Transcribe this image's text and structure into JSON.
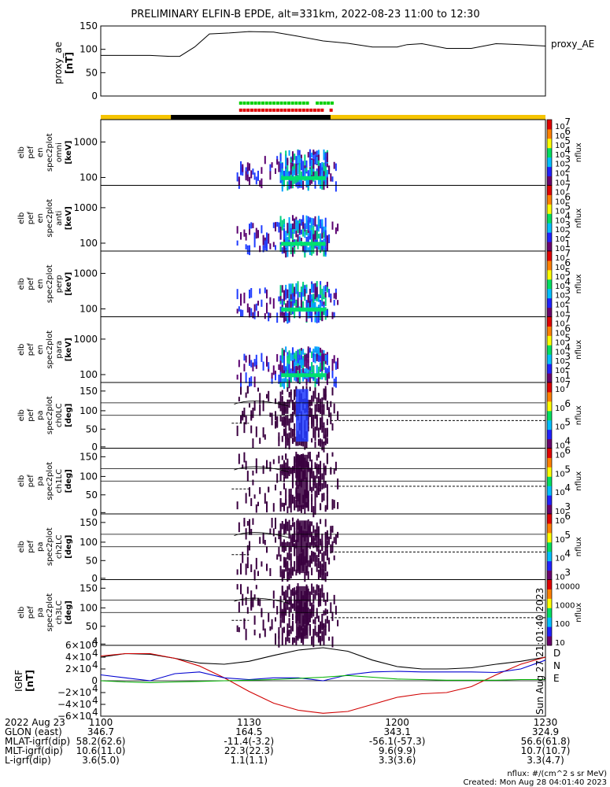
{
  "title": "PRELIMINARY ELFIN-B EPDE, alt=331km, 2022-08-23 11:00 to 12:30",
  "chart_data": [
    {
      "type": "line",
      "panel": "proxy_ae",
      "ylabel_lines": [
        "proxy_ae",
        "[nT]"
      ],
      "legend": "proxy_AE",
      "ylim": [
        0,
        150
      ],
      "yticks": [
        "150",
        "100",
        "50",
        "0"
      ],
      "x_minutes": [
        0,
        10,
        14,
        16,
        19,
        22,
        26,
        30,
        35,
        40,
        45,
        50,
        55,
        60,
        62,
        65,
        70,
        75,
        80,
        85,
        90
      ],
      "values": [
        87,
        87,
        85,
        85,
        105,
        133,
        135,
        138,
        137,
        128,
        118,
        113,
        105,
        105,
        110,
        112,
        102,
        102,
        112,
        110,
        107
      ]
    },
    {
      "type": "heatmap",
      "panels": [
        {
          "labels": [
            "elb",
            "pef",
            "en",
            "spec2plot",
            "omni",
            "[keV]"
          ],
          "yticks": [
            "1000",
            "100"
          ],
          "cbar": [
            "10",
            "10",
            "10",
            "10",
            "10",
            "10",
            "10"
          ],
          "cexp": [
            "7",
            "6",
            "5",
            "4",
            "3",
            "2",
            "1"
          ]
        },
        {
          "labels": [
            "elb",
            "pef",
            "en",
            "spec2plot",
            "anti",
            "[keV]"
          ],
          "yticks": [
            "1000",
            "100"
          ],
          "cbar": [
            "10",
            "10",
            "10",
            "10",
            "10",
            "10",
            "10"
          ],
          "cexp": [
            "7",
            "6",
            "5",
            "4",
            "3",
            "2",
            "1"
          ]
        },
        {
          "labels": [
            "elb",
            "pef",
            "en",
            "spec2plot",
            "perp",
            "[keV]"
          ],
          "yticks": [
            "1000",
            "100"
          ],
          "cbar": [
            "10",
            "10",
            "10",
            "10",
            "10",
            "10",
            "10"
          ],
          "cexp": [
            "7",
            "6",
            "5",
            "4",
            "3",
            "2",
            "1"
          ]
        },
        {
          "labels": [
            "elb",
            "pef",
            "en",
            "spec2plot",
            "para",
            "[keV]"
          ],
          "yticks": [
            "1000",
            "100"
          ],
          "cbar": [
            "10",
            "10",
            "10",
            "10",
            "10",
            "10",
            "10"
          ],
          "cexp": [
            "7",
            "6",
            "5",
            "4",
            "3",
            "2",
            "1"
          ]
        },
        {
          "labels": [
            "elb",
            "pef",
            "pa",
            "spec2plot",
            "ch0LC",
            "[deg]"
          ],
          "yticks": [
            "150",
            "100",
            "50",
            "0"
          ],
          "cbar": [
            "10",
            "10",
            "10",
            "10"
          ],
          "cexp": [
            "7",
            "6",
            "5",
            "4"
          ]
        },
        {
          "labels": [
            "elb",
            "pef",
            "pa",
            "spec2plot",
            "ch1LC",
            "[deg]"
          ],
          "yticks": [
            "150",
            "100",
            "50",
            "0"
          ],
          "cbar": [
            "10",
            "10",
            "10",
            "10"
          ],
          "cexp": [
            "6",
            "5",
            "4",
            "3"
          ]
        },
        {
          "labels": [
            "elb",
            "pef",
            "pa",
            "spec2plot",
            "ch2LC",
            "[deg]"
          ],
          "yticks": [
            "150",
            "100",
            "50",
            "0"
          ],
          "cbar": [
            "10",
            "10",
            "10",
            "10"
          ],
          "cexp": [
            "6",
            "5",
            "4",
            "3"
          ]
        },
        {
          "labels": [
            "elb",
            "pef",
            "pa",
            "spec2plot",
            "ch3LC",
            "[deg]"
          ],
          "yticks": [
            "150",
            "100",
            "50",
            "0"
          ],
          "cbar": [
            "10000",
            "1000",
            "100",
            "10"
          ],
          "cexp": [
            "",
            "",
            "",
            ""
          ]
        }
      ],
      "cbar_label": "nflux"
    },
    {
      "type": "line",
      "panel": "igrf",
      "ylabel_lines": [
        "IGRF",
        "[nT]"
      ],
      "ylim": [
        -60000,
        60000
      ],
      "yticks": [
        "6×10",
        "4×10",
        "2×10",
        "0",
        "−2×10",
        "−4×10",
        "−6×10"
      ],
      "ytick_exp": [
        "4",
        "4",
        "4",
        "",
        "4",
        "4",
        "4"
      ],
      "legend": [
        "D",
        "N",
        "E"
      ],
      "colors": {
        "D": "#d00000",
        "N": "#0000d0",
        "E": "#00b000",
        "total": "#000000"
      },
      "x_minutes": [
        0,
        5,
        10,
        15,
        20,
        25,
        30,
        35,
        40,
        45,
        50,
        55,
        60,
        65,
        70,
        75,
        80,
        85,
        90
      ],
      "total": [
        40000,
        46000,
        45000,
        38000,
        30000,
        28000,
        33000,
        43000,
        52000,
        56000,
        50000,
        35000,
        24000,
        20000,
        20000,
        22000,
        28000,
        33000,
        40000
      ],
      "D": [
        42000,
        46000,
        46000,
        38000,
        25000,
        5000,
        -18000,
        -38000,
        -50000,
        -55000,
        -52000,
        -40000,
        -28000,
        -22000,
        -20000,
        -10000,
        10000,
        28000,
        40000
      ],
      "N": [
        10000,
        5000,
        0,
        12000,
        15000,
        5000,
        2000,
        5000,
        5000,
        0,
        10000,
        15000,
        16000,
        15000,
        15000,
        15000,
        14000,
        20000,
        35000
      ],
      "E": [
        0,
        -2000,
        -3000,
        -2000,
        -1000,
        0,
        1000,
        2000,
        4000,
        6000,
        9000,
        6000,
        3000,
        2000,
        1000,
        1000,
        1000,
        2000,
        2000
      ]
    }
  ],
  "side_label": "Sun Aug 27 21:01:40 2023",
  "ephemeris": {
    "rows": [
      {
        "label": "2022 Aug 23",
        "vals": [
          "1100",
          "1130",
          "1200",
          "1230"
        ]
      },
      {
        "label": "GLON (east)",
        "vals": [
          "346.7",
          "164.5",
          "343.1",
          "324.9"
        ]
      },
      {
        "label": "MLAT-igrf(dip)",
        "vals": [
          "58.2(62.6)",
          "-11.4(-3.2)",
          "-56.1(-57.3)",
          "56.6(61.8)"
        ]
      },
      {
        "label": "MLT-igrf(dip)",
        "vals": [
          "10.6(11.0)",
          "22.3(22.3)",
          "9.6(9.9)",
          "10.7(10.7)"
        ]
      },
      {
        "label": "L-igrf(dip)",
        "vals": [
          "3.6(5.0)",
          "1.1(1.1)",
          "3.3(3.6)",
          "3.3(4.7)"
        ]
      }
    ]
  },
  "footer": {
    "units": "nflux: #/(cm^2 s sr MeV)",
    "created": "Created: Mon Aug 28 04:01:40 2023"
  }
}
